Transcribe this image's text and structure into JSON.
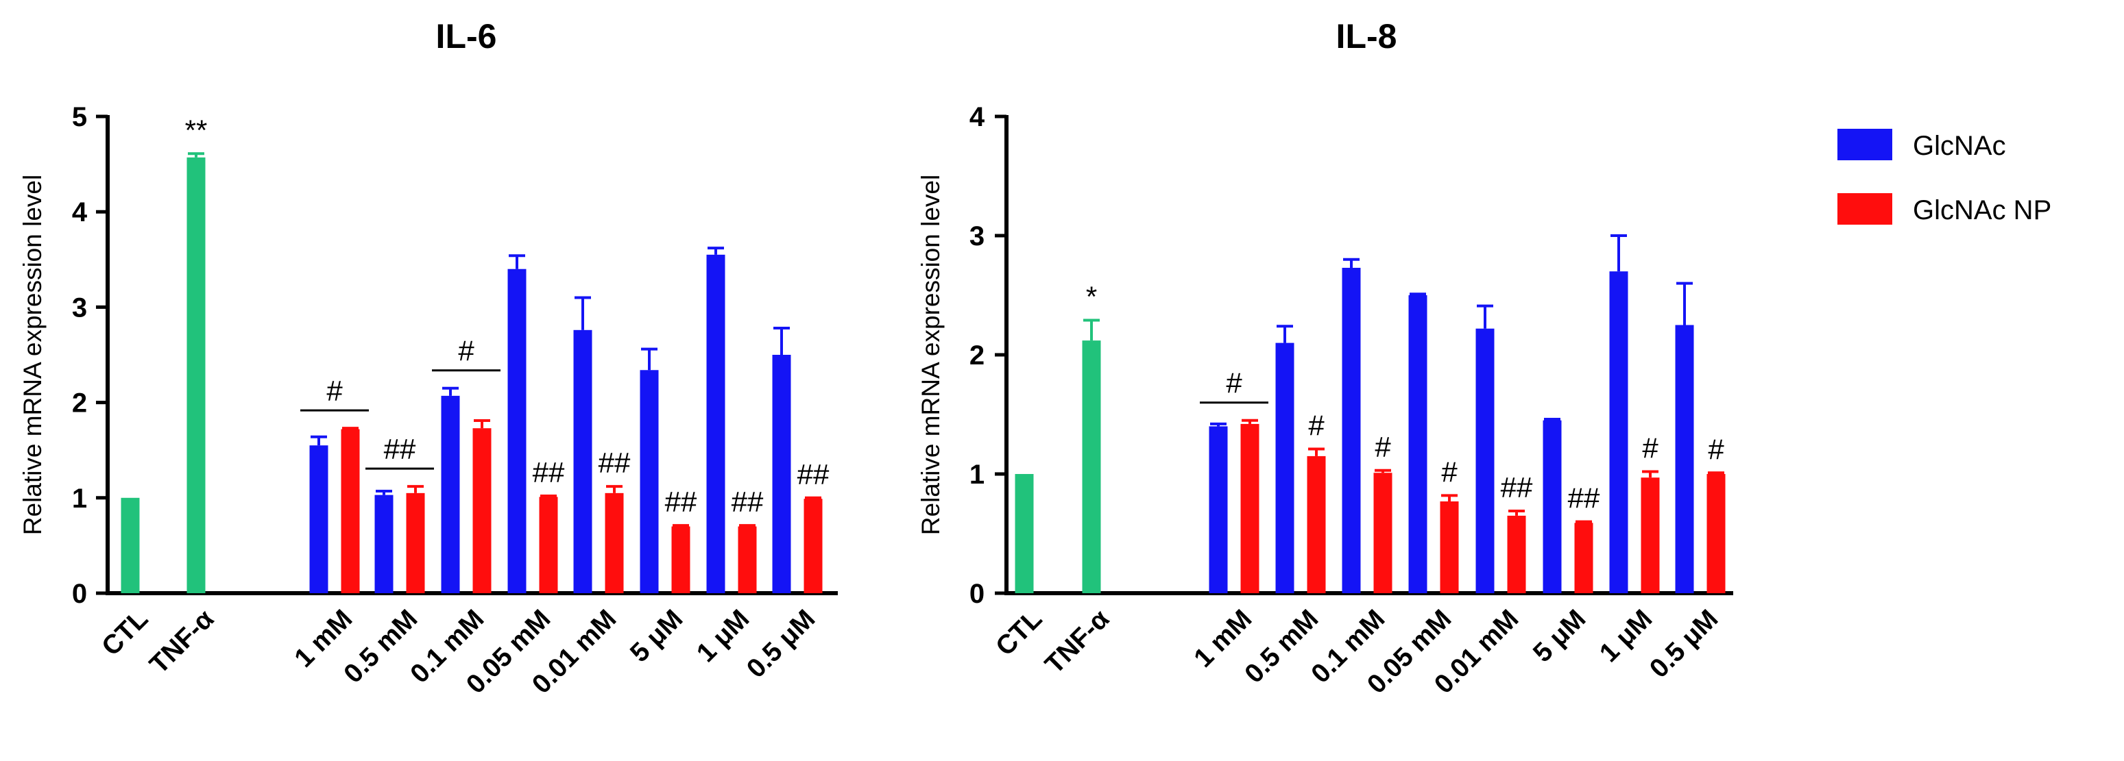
{
  "chart_data": [
    {
      "type": "bar",
      "title": "IL-6",
      "ylabel": "Relative mRNA expression level",
      "xlabel": "",
      "ylim": [
        0,
        5
      ],
      "yticks": [
        0,
        1,
        2,
        3,
        4,
        5
      ],
      "controls": [
        {
          "label": "CTL",
          "value": 1.0,
          "error": 0,
          "mark": ""
        },
        {
          "label": "TNF-α",
          "value": 4.57,
          "error": 0.04,
          "mark": "**"
        }
      ],
      "categories": [
        "1 mM",
        "0.5 mM",
        "0.1 mM",
        "0.05 mM",
        "0.01 mM",
        "5 μM",
        "1 μM",
        "0.5 μM"
      ],
      "series": [
        {
          "name": "GlcNAc",
          "values": [
            1.55,
            1.03,
            2.07,
            3.4,
            2.76,
            2.34,
            3.55,
            2.5
          ],
          "errors": [
            0.09,
            0.04,
            0.08,
            0.14,
            0.34,
            0.22,
            0.07,
            0.28
          ]
        },
        {
          "name": "GlcNAc NP",
          "values": [
            1.72,
            1.05,
            1.73,
            1.01,
            1.05,
            0.7,
            0.7,
            0.99
          ],
          "errors": [
            0.01,
            0.07,
            0.08,
            0.01,
            0.07,
            0.01,
            0.01,
            0.01
          ]
        }
      ],
      "annotations": [
        {
          "group": 0,
          "text": "#",
          "bracket": true
        },
        {
          "group": 1,
          "text": "##",
          "bracket": true
        },
        {
          "group": 2,
          "text": "#",
          "bracket": true
        },
        {
          "group": 3,
          "text": "##",
          "bracket": false
        },
        {
          "group": 4,
          "text": "##",
          "bracket": false
        },
        {
          "group": 5,
          "text": "##",
          "bracket": false
        },
        {
          "group": 6,
          "text": "##",
          "bracket": false
        },
        {
          "group": 7,
          "text": "##",
          "bracket": false
        }
      ]
    },
    {
      "type": "bar",
      "title": "IL-8",
      "ylabel": "Relative mRNA expression level",
      "xlabel": "",
      "ylim": [
        0,
        4
      ],
      "yticks": [
        0,
        1,
        2,
        3,
        4
      ],
      "controls": [
        {
          "label": "CTL",
          "value": 1.0,
          "error": 0,
          "mark": ""
        },
        {
          "label": "TNF-α",
          "value": 2.12,
          "error": 0.17,
          "mark": "*"
        }
      ],
      "categories": [
        "1 mM",
        "0.5 mM",
        "0.1 mM",
        "0.05 mM",
        "0.01 mM",
        "5 μM",
        "1 μM",
        "0.5 μM"
      ],
      "series": [
        {
          "name": "GlcNAc",
          "values": [
            1.4,
            2.1,
            2.73,
            2.5,
            2.22,
            1.45,
            2.7,
            2.25
          ],
          "errors": [
            0.02,
            0.14,
            0.07,
            0.01,
            0.19,
            0.01,
            0.3,
            0.35
          ]
        },
        {
          "name": "GlcNAc NP",
          "values": [
            1.42,
            1.15,
            1.01,
            0.77,
            0.65,
            0.59,
            0.97,
            1.0
          ],
          "errors": [
            0.03,
            0.06,
            0.02,
            0.05,
            0.04,
            0.01,
            0.05,
            0.01
          ]
        }
      ],
      "annotations": [
        {
          "group": 0,
          "text": "#",
          "bracket": true
        },
        {
          "group": 1,
          "text": "#",
          "bracket": false
        },
        {
          "group": 2,
          "text": "#",
          "bracket": false
        },
        {
          "group": 3,
          "text": "#",
          "bracket": false
        },
        {
          "group": 4,
          "text": "##",
          "bracket": false
        },
        {
          "group": 5,
          "text": "##",
          "bracket": false
        },
        {
          "group": 6,
          "text": "#",
          "bracket": false
        },
        {
          "group": 7,
          "text": "#",
          "bracket": false
        }
      ]
    }
  ],
  "legend": {
    "position": "right",
    "entries": [
      {
        "name": "GlcNAc",
        "color": "#1414F5"
      },
      {
        "name": "GlcNAc NP",
        "color": "#FF0D0D"
      }
    ]
  },
  "colors": {
    "control": "#21C27B",
    "glcnac": "#1414F5",
    "glcnac_np": "#FF0D0D",
    "axis": "#000000"
  }
}
